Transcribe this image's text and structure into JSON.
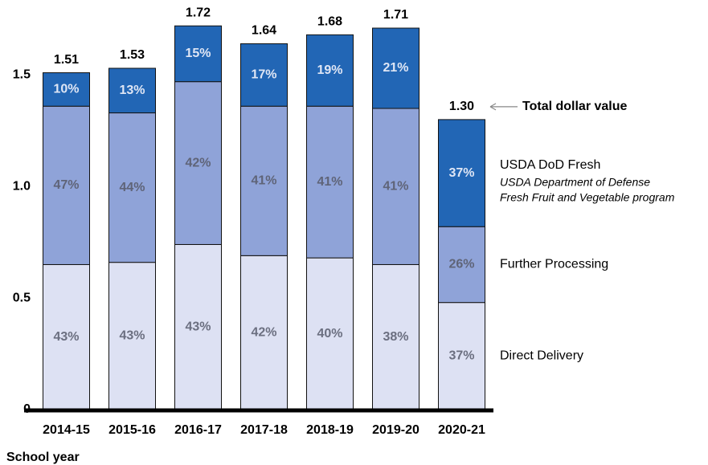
{
  "chart_data": {
    "type": "stacked_bar",
    "x_label": "School year",
    "categories": [
      "2014-15",
      "2015-16",
      "2016-17",
      "2017-18",
      "2018-19",
      "2019-20",
      "2020-21"
    ],
    "series": [
      {
        "name": "Direct Delivery",
        "color": "#dde1f3",
        "label_color": "#6b6f80",
        "values": [
          0.65,
          0.66,
          0.74,
          0.69,
          0.68,
          0.65,
          0.48
        ],
        "labels": [
          "43%",
          "43%",
          "43%",
          "42%",
          "40%",
          "38%",
          "37%"
        ]
      },
      {
        "name": "Further Processing",
        "color": "#8fa3d8",
        "label_color": "#5f6478",
        "values": [
          0.71,
          0.67,
          0.73,
          0.67,
          0.68,
          0.7,
          0.34
        ],
        "labels": [
          "47%",
          "44%",
          "42%",
          "41%",
          "41%",
          "41%",
          "26%"
        ]
      },
      {
        "name": "USDA DoD Fresh",
        "color": "#2266b5",
        "label_color": "#dfe6f5",
        "note": [
          "USDA Department of Defense",
          "Fresh Fruit and Vegetable program"
        ],
        "values": [
          0.15,
          0.2,
          0.25,
          0.28,
          0.32,
          0.36,
          0.48
        ],
        "labels": [
          "10%",
          "13%",
          "15%",
          "17%",
          "19%",
          "21%",
          "37%"
        ]
      }
    ],
    "total_labels": [
      "1.51",
      "1.53",
      "1.72",
      "1.64",
      "1.68",
      "1.71",
      "1.30"
    ],
    "annotation": "Total dollar value",
    "ylim": [
      0,
      1.8
    ],
    "yticks": [
      0,
      0.5,
      {
        "value": 1,
        "label": "1.0"
      },
      1.5
    ]
  }
}
